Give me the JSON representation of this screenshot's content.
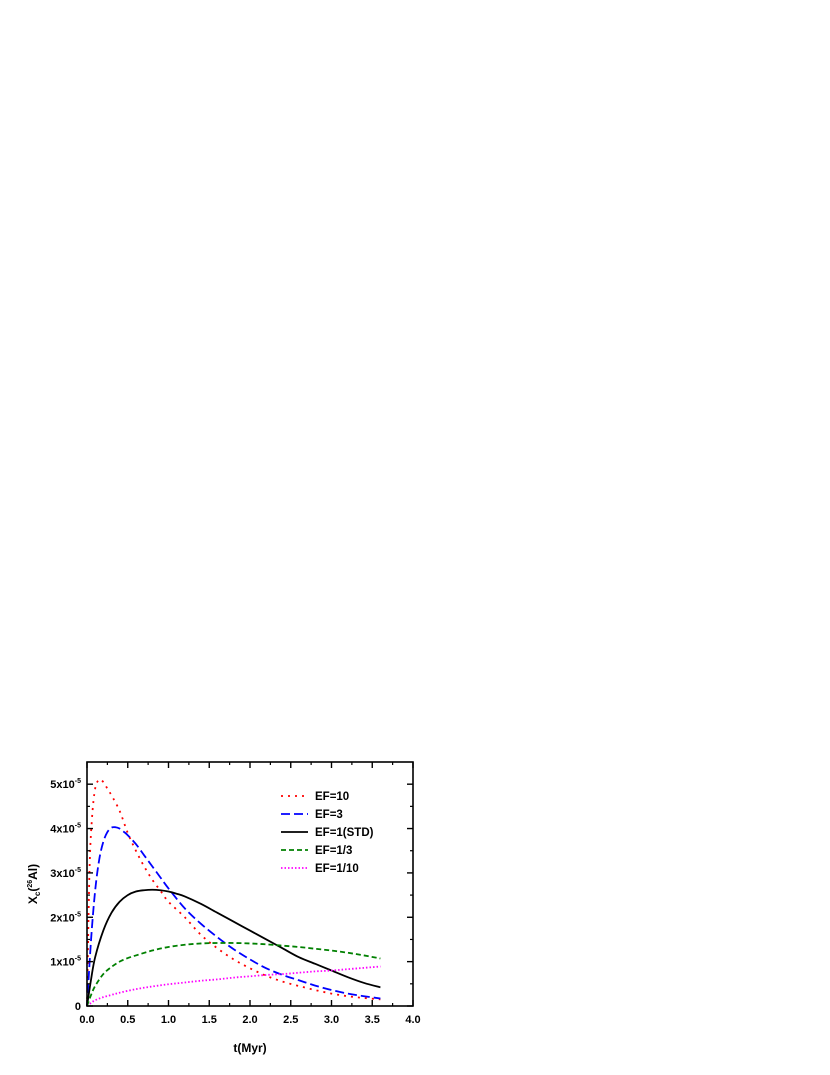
{
  "chart_data": {
    "type": "line",
    "xlabel": "t(Myr)",
    "ylabel_prefix": "X",
    "ylabel_sub": "c",
    "ylabel_open": "(",
    "ylabel_sup": "26",
    "ylabel_rest": "Al)",
    "xlim": [
      0,
      4.0
    ],
    "ylim": [
      0,
      5.5e-05
    ],
    "x_ticks": [
      {
        "value": 0.0,
        "label": "0.0"
      },
      {
        "value": 0.5,
        "label": "0.5"
      },
      {
        "value": 1.0,
        "label": "1.0"
      },
      {
        "value": 1.5,
        "label": "1.5"
      },
      {
        "value": 2.0,
        "label": "2.0"
      },
      {
        "value": 2.5,
        "label": "2.5"
      },
      {
        "value": 3.0,
        "label": "3.0"
      },
      {
        "value": 3.5,
        "label": "3.5"
      },
      {
        "value": 4.0,
        "label": "4.0"
      }
    ],
    "y_ticks": [
      {
        "value": 0,
        "label": "0",
        "mant": "",
        "exp": ""
      },
      {
        "value": 1e-05,
        "label": "",
        "mant": "1x10",
        "exp": "-5"
      },
      {
        "value": 2e-05,
        "label": "",
        "mant": "2x10",
        "exp": "-5"
      },
      {
        "value": 3e-05,
        "label": "",
        "mant": "3x10",
        "exp": "-5"
      },
      {
        "value": 4e-05,
        "label": "",
        "mant": "4x10",
        "exp": "-5"
      },
      {
        "value": 5e-05,
        "label": "",
        "mant": "5x10",
        "exp": "-5"
      }
    ],
    "legend_position": "top-right",
    "grid": false,
    "series": [
      {
        "name": "EF=10",
        "color": "#ff0000",
        "dash": "2,5",
        "x": [
          0,
          0.03,
          0.06,
          0.1,
          0.15,
          0.2,
          0.25,
          0.3,
          0.4,
          0.5,
          0.6,
          0.7,
          0.8,
          0.9,
          1.0,
          1.2,
          1.4,
          1.6,
          1.8,
          2.0,
          2.2,
          2.4,
          2.6,
          2.8,
          3.0,
          3.2,
          3.4,
          3.6
        ],
        "y": [
          0,
          3e-05,
          4.2e-05,
          4.9e-05,
          5.1e-05,
          5.05e-05,
          4.9e-05,
          4.75e-05,
          4.4e-05,
          3.9e-05,
          3.5e-05,
          3.15e-05,
          2.85e-05,
          2.6e-05,
          2.35e-05,
          2e-05,
          1.6e-05,
          1.3e-05,
          1.05e-05,
          8.5e-06,
          6.8e-06,
          5.5e-06,
          4.5e-06,
          3.6e-06,
          2.8e-06,
          2.2e-06,
          1.8e-06,
          1.5e-06
        ]
      },
      {
        "name": "EF=3",
        "color": "#0000ff",
        "dash": "9,4",
        "x": [
          0,
          0.05,
          0.1,
          0.15,
          0.2,
          0.25,
          0.3,
          0.35,
          0.4,
          0.45,
          0.5,
          0.6,
          0.7,
          0.8,
          0.9,
          1.0,
          1.2,
          1.4,
          1.6,
          1.8,
          2.0,
          2.2,
          2.4,
          2.6,
          2.8,
          3.0,
          3.2,
          3.4,
          3.6
        ],
        "y": [
          0,
          1.5e-05,
          2.6e-05,
          3.3e-05,
          3.7e-05,
          3.92e-05,
          4.02e-05,
          4.03e-05,
          4e-05,
          3.93e-05,
          3.85e-05,
          3.65e-05,
          3.4e-05,
          3.15e-05,
          2.9e-05,
          2.65e-05,
          2.2e-05,
          1.85e-05,
          1.55e-05,
          1.28e-05,
          1.05e-05,
          8.5e-06,
          7e-06,
          5.8e-06,
          4.6e-06,
          3.6e-06,
          2.8e-06,
          2.2e-06,
          1.7e-06
        ]
      },
      {
        "name": "EF=1(STD)",
        "color": "#000000",
        "dash": "",
        "x": [
          0,
          0.05,
          0.1,
          0.2,
          0.3,
          0.4,
          0.5,
          0.6,
          0.7,
          0.8,
          0.9,
          1.0,
          1.1,
          1.2,
          1.4,
          1.6,
          1.8,
          2.0,
          2.2,
          2.4,
          2.6,
          2.8,
          3.0,
          3.2,
          3.4,
          3.6
        ],
        "y": [
          0,
          6e-06,
          1.1e-05,
          1.7e-05,
          2.1e-05,
          2.35e-05,
          2.5e-05,
          2.58e-05,
          2.61e-05,
          2.62e-05,
          2.61e-05,
          2.58e-05,
          2.53e-05,
          2.47e-05,
          2.3e-05,
          2.1e-05,
          1.9e-05,
          1.7e-05,
          1.5e-05,
          1.3e-05,
          1.1e-05,
          9.5e-06,
          8e-06,
          6.5e-06,
          5.2e-06,
          4.2e-06
        ]
      },
      {
        "name": "EF=1/3",
        "color": "#008000",
        "dash": "5,3",
        "x": [
          0,
          0.05,
          0.1,
          0.2,
          0.3,
          0.4,
          0.5,
          0.6,
          0.8,
          1.0,
          1.2,
          1.4,
          1.6,
          1.8,
          2.0,
          2.2,
          2.4,
          2.6,
          2.8,
          3.0,
          3.2,
          3.4,
          3.6
        ],
        "y": [
          0,
          2.5e-06,
          4.5e-06,
          7.2e-06,
          8.8e-06,
          1e-05,
          1.08e-05,
          1.14e-05,
          1.25e-05,
          1.33e-05,
          1.38e-05,
          1.41e-05,
          1.42e-05,
          1.42e-05,
          1.41e-05,
          1.39e-05,
          1.36e-05,
          1.33e-05,
          1.29e-05,
          1.25e-05,
          1.2e-05,
          1.14e-05,
          1.07e-05
        ]
      },
      {
        "name": "EF=1/10",
        "color": "#ff00ff",
        "dash": "1.5,2",
        "x": [
          0,
          0.05,
          0.1,
          0.2,
          0.3,
          0.4,
          0.6,
          0.8,
          1.0,
          1.2,
          1.4,
          1.6,
          1.8,
          2.0,
          2.2,
          2.4,
          2.6,
          2.8,
          3.0,
          3.2,
          3.4,
          3.6
        ],
        "y": [
          0,
          7e-07,
          1.3e-06,
          2e-06,
          2.5e-06,
          3e-06,
          3.8e-06,
          4.4e-06,
          4.9e-06,
          5.3e-06,
          5.7e-06,
          6e-06,
          6.4e-06,
          6.7e-06,
          7e-06,
          7.2e-06,
          7.5e-06,
          7.8e-06,
          8e-06,
          8.3e-06,
          8.6e-06,
          8.9e-06
        ]
      }
    ]
  }
}
